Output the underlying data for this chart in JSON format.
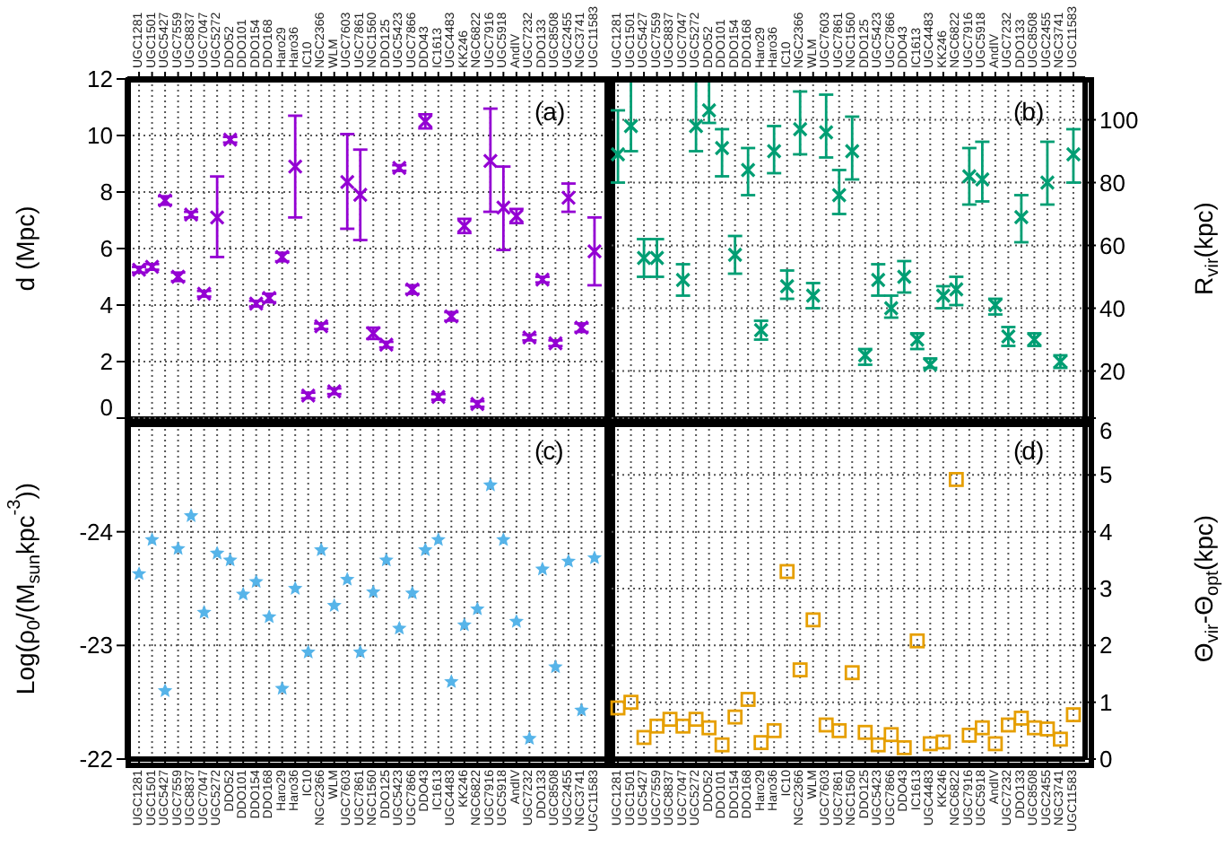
{
  "chart_data": [
    {
      "type": "scatter",
      "categories": [
        "UGC1281",
        "UGC1501",
        "UGC5427",
        "UGC7559",
        "UGC8837",
        "UGC7047",
        "UGC5272",
        "DDO52",
        "DDO101",
        "DDO154",
        "DDO168",
        "Haro29",
        "Haro36",
        "IC10",
        "NGC2366",
        "WLM",
        "UGC7603",
        "UGC7861",
        "NGC1560",
        "DDO125",
        "UGC5423",
        "UGC7866",
        "DDO43",
        "IC1613",
        "UGC4483",
        "KK246",
        "NGC6822",
        "UGC7916",
        "UGC5918",
        "AndIV",
        "UGC7232",
        "DDO133",
        "UGC8508",
        "UGC2455",
        "NGC3741",
        "UGC11583"
      ],
      "values": [
        5.25,
        5.35,
        7.7,
        5.0,
        7.2,
        4.4,
        7.1,
        9.85,
        null,
        4.05,
        4.25,
        5.7,
        8.9,
        0.8,
        3.25,
        0.95,
        8.35,
        7.9,
        3.0,
        2.6,
        8.85,
        4.55,
        10.5,
        0.75,
        3.6,
        6.8,
        0.5,
        9.1,
        7.45,
        7.15,
        2.85,
        4.9,
        2.65,
        7.8,
        3.2,
        5.9
      ],
      "errors": [
        0.1,
        0.1,
        0.15,
        0.15,
        0.1,
        0.1,
        [
          5.7,
          8.55
        ],
        0.1,
        null,
        0.1,
        0.15,
        0.15,
        [
          7.1,
          10.7
        ],
        0.1,
        0.1,
        0.1,
        [
          6.7,
          10.05
        ],
        [
          6.3,
          9.5
        ],
        0.2,
        0.1,
        0.1,
        0.15,
        0.25,
        0.1,
        0.15,
        0.25,
        0.1,
        [
          7.3,
          10.95
        ],
        [
          5.95,
          8.9
        ],
        0.25,
        0.1,
        0.1,
        0.1,
        0.5,
        0.15,
        1.2
      ],
      "color": "#9400d3",
      "marker": "cross",
      "ylabel": "d (Mpc)",
      "ylim": [
        0,
        12
      ],
      "yticks": [
        0,
        2,
        4,
        6,
        8,
        10,
        12
      ],
      "grid": true,
      "annotations": [
        "(a)"
      ]
    },
    {
      "type": "scatter",
      "categories": [
        "UGC1281",
        "UGC1501",
        "UGC5427",
        "UGC7559",
        "UGC8837",
        "UGC7047",
        "UGC5272",
        "DDO52",
        "DDO101",
        "DDO154",
        "DDO168",
        "Haro29",
        "Haro36",
        "IC10",
        "NGC2366",
        "WLM",
        "UGC7603",
        "UGC7861",
        "NGC1560",
        "DDO125",
        "UGC5423",
        "UGC7866",
        "DDO43",
        "IC1613",
        "UGC4483",
        "KK246",
        "NGC6822",
        "UGC7916",
        "UGC5918",
        "AndIV",
        "UGC7232",
        "DDO133",
        "UGC8508",
        "UGC2455",
        "NGC3741",
        "UGC11583"
      ],
      "series": [
        {
          "axis": "y2",
          "color": "#009e73",
          "values": [
            89,
            98,
            56,
            56,
            null,
            49,
            98,
            103,
            91,
            57,
            84,
            33,
            90,
            47,
            97,
            44,
            96,
            76,
            90,
            25,
            49,
            40,
            50,
            30,
            22,
            44,
            46,
            82,
            81,
            41,
            31,
            69,
            30,
            80,
            23,
            89
          ],
          "errors": [
            [
              80,
              103
            ],
            [
              90,
              113
            ],
            [
              50,
              62
            ],
            [
              50,
              62
            ],
            null,
            [
              44,
              54
            ],
            [
              90,
              113
            ],
            [
              99,
              113
            ],
            [
              82,
              97
            ],
            [
              51,
              63
            ],
            [
              76,
              91
            ],
            [
              30,
              36
            ],
            [
              83,
              98
            ],
            [
              43,
              52
            ],
            [
              89,
              109
            ],
            [
              40,
              48
            ],
            [
              88,
              108
            ],
            [
              70,
              84
            ],
            [
              81,
              101
            ],
            [
              22,
              27
            ],
            [
              44,
              54
            ],
            [
              37,
              44
            ],
            [
              45,
              55
            ],
            [
              27,
              32
            ],
            [
              21,
              24
            ],
            [
              40,
              47
            ],
            [
              41,
              50
            ],
            [
              73,
              91
            ],
            [
              74,
              93
            ],
            [
              38,
              43
            ],
            [
              28,
              34
            ],
            [
              61,
              76
            ],
            [
              28,
              32
            ],
            [
              73,
              93
            ],
            [
              21,
              25
            ],
            [
              80,
              97
            ]
          ]
        }
      ],
      "marker": "cross",
      "y2label": "R$_{vir}$(kpc)",
      "y2lim": [
        5,
        113
      ],
      "y2ticks": [
        20,
        40,
        60,
        80,
        100
      ],
      "grid": true,
      "annotations": [
        "(b)"
      ]
    },
    {
      "type": "scatter",
      "categories": [
        "UGC1281",
        "UGC1501",
        "UGC5427",
        "UGC7559",
        "UGC8837",
        "UGC7047",
        "UGC5272",
        "DDO52",
        "DDO101",
        "DDO154",
        "DDO168",
        "Haro29",
        "Haro36",
        "IC10",
        "NGC2366",
        "WLM",
        "UGC7603",
        "UGC7861",
        "NGC1560",
        "DDO125",
        "UGC5423",
        "UGC7866",
        "DDO43",
        "IC1613",
        "UGC4483",
        "KK246",
        "NGC6822",
        "UGC7916",
        "UGC5918",
        "AndIV",
        "UGC7232",
        "DDO133",
        "UGC8508",
        "UGC2455",
        "NGC3741",
        "UGC11583"
      ],
      "values": [
        -23.63,
        -23.93,
        -22.6,
        -23.85,
        -24.14,
        -23.29,
        -23.81,
        -23.75,
        -23.45,
        -23.56,
        -23.25,
        -22.62,
        -23.5,
        -22.94,
        -23.84,
        -23.35,
        -23.58,
        -22.94,
        -23.47,
        -23.75,
        -23.15,
        -23.46,
        -23.84,
        -23.93,
        -22.68,
        -23.18,
        -23.32,
        -24.41,
        -23.93,
        -23.21,
        -22.18,
        -23.67,
        -22.81,
        -23.74,
        -22.43,
        -23.77
      ],
      "color": "#56b4e9",
      "marker": "star",
      "ylabel": "Log(ρ$_{0}$/(M$_{sun}$kpc$^{-3}$))",
      "ylim": [
        -22,
        -25
      ],
      "yticks": [
        -22,
        -23,
        -24
      ],
      "grid": true,
      "annotations": [
        "(c)"
      ]
    },
    {
      "type": "scatter",
      "categories": [
        "UGC1281",
        "UGC1501",
        "UGC5427",
        "UGC7559",
        "UGC8837",
        "UGC7047",
        "UGC5272",
        "DDO52",
        "DDO101",
        "DDO154",
        "DDO168",
        "Haro29",
        "Haro36",
        "IC10",
        "NGC2366",
        "WLM",
        "UGC7603",
        "UGC7861",
        "NGC1560",
        "DDO125",
        "UGC5423",
        "UGC7866",
        "DDO43",
        "IC1613",
        "UGC4483",
        "KK246",
        "NGC6822",
        "UGC7916",
        "UGC5918",
        "AndIV",
        "UGC7232",
        "DDO133",
        "UGC8508",
        "UGC2455",
        "NGC3741",
        "UGC11583"
      ],
      "series": [
        {
          "axis": "y2",
          "color": "#e69f00",
          "values": [
            0.9,
            1.0,
            0.38,
            0.58,
            0.7,
            0.58,
            0.7,
            0.55,
            0.25,
            0.74,
            1.05,
            0.29,
            0.5,
            3.3,
            1.57,
            2.45,
            0.6,
            0.5,
            1.52,
            0.47,
            0.25,
            0.43,
            0.2,
            2.08,
            0.27,
            0.3,
            4.92,
            0.42,
            0.55,
            0.27,
            0.6,
            0.72,
            0.55,
            0.53,
            0.35,
            0.78
          ]
        }
      ],
      "marker": "square",
      "y2label": "Θ$_{vir}$-Θ$_{opt}$(kpc)",
      "y2lim": [
        0,
        6
      ],
      "y2ticks": [
        0,
        1,
        2,
        3,
        4,
        5,
        6
      ],
      "grid": true,
      "annotations": [
        "(d)"
      ]
    }
  ]
}
